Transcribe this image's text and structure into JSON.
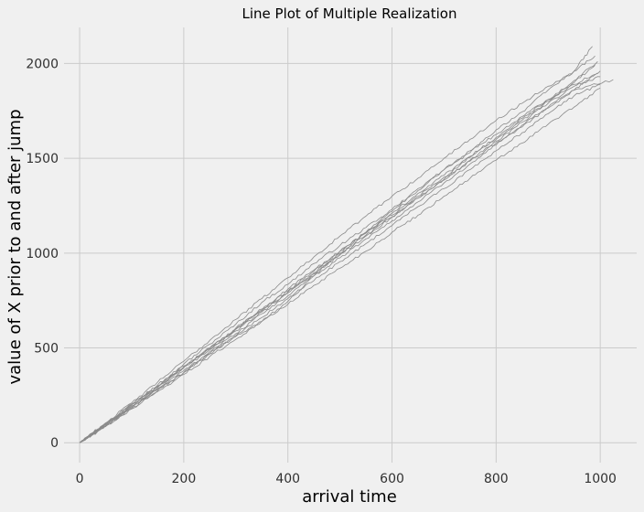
{
  "chart_data": {
    "type": "line",
    "title": "Line Plot of Multiple Realization",
    "xlabel": "arrival time",
    "ylabel": "value of X prior to and after jump",
    "xlim": [
      -30,
      1070
    ],
    "ylim": [
      -105,
      2190
    ],
    "x_ticks": [
      0,
      200,
      400,
      600,
      800,
      1000
    ],
    "y_ticks": [
      0,
      500,
      1000,
      1500,
      2000
    ],
    "grid": true,
    "legend": "none",
    "line_color": "#8a8a8a",
    "background": "#f0f0f0",
    "grid_color": "#cbcbcb",
    "series": [
      {
        "points": [
          [
            0,
            0
          ],
          [
            50,
            95
          ],
          [
            100,
            205
          ],
          [
            150,
            300
          ],
          [
            200,
            415
          ],
          [
            250,
            520
          ],
          [
            300,
            625
          ],
          [
            350,
            740
          ],
          [
            400,
            835
          ],
          [
            450,
            945
          ],
          [
            500,
            1040
          ],
          [
            550,
            1135
          ],
          [
            600,
            1220
          ],
          [
            650,
            1330
          ],
          [
            700,
            1440
          ],
          [
            750,
            1530
          ],
          [
            800,
            1650
          ],
          [
            850,
            1745
          ],
          [
            900,
            1860
          ],
          [
            950,
            1960
          ],
          [
            985,
            2090
          ]
        ]
      },
      {
        "points": [
          [
            0,
            0
          ],
          [
            50,
            90
          ],
          [
            100,
            190
          ],
          [
            150,
            280
          ],
          [
            200,
            370
          ],
          [
            250,
            470
          ],
          [
            300,
            560
          ],
          [
            350,
            640
          ],
          [
            400,
            745
          ],
          [
            450,
            880
          ],
          [
            500,
            1000
          ],
          [
            550,
            1110
          ],
          [
            600,
            1230
          ],
          [
            650,
            1340
          ],
          [
            700,
            1440
          ],
          [
            750,
            1540
          ],
          [
            800,
            1625
          ],
          [
            850,
            1720
          ],
          [
            900,
            1810
          ],
          [
            950,
            1890
          ],
          [
            1000,
            1960
          ]
        ]
      },
      {
        "points": [
          [
            0,
            0
          ],
          [
            50,
            100
          ],
          [
            100,
            200
          ],
          [
            150,
            305
          ],
          [
            200,
            405
          ],
          [
            250,
            500
          ],
          [
            300,
            600
          ],
          [
            350,
            705
          ],
          [
            400,
            800
          ],
          [
            450,
            905
          ],
          [
            500,
            1010
          ],
          [
            550,
            1105
          ],
          [
            600,
            1200
          ],
          [
            650,
            1300
          ],
          [
            700,
            1400
          ],
          [
            750,
            1505
          ],
          [
            800,
            1600
          ],
          [
            850,
            1700
          ],
          [
            900,
            1800
          ],
          [
            950,
            1900
          ],
          [
            990,
            1990
          ]
        ]
      },
      {
        "points": [
          [
            0,
            0
          ],
          [
            50,
            85
          ],
          [
            100,
            180
          ],
          [
            150,
            270
          ],
          [
            200,
            360
          ],
          [
            250,
            455
          ],
          [
            300,
            545
          ],
          [
            350,
            640
          ],
          [
            400,
            730
          ],
          [
            450,
            830
          ],
          [
            500,
            920
          ],
          [
            550,
            1010
          ],
          [
            600,
            1110
          ],
          [
            650,
            1200
          ],
          [
            700,
            1300
          ],
          [
            750,
            1395
          ],
          [
            800,
            1490
          ],
          [
            850,
            1580
          ],
          [
            900,
            1680
          ],
          [
            950,
            1770
          ],
          [
            1000,
            1870
          ]
        ]
      },
      {
        "points": [
          [
            0,
            0
          ],
          [
            50,
            105
          ],
          [
            100,
            210
          ],
          [
            150,
            320
          ],
          [
            200,
            430
          ],
          [
            250,
            540
          ],
          [
            300,
            650
          ],
          [
            350,
            760
          ],
          [
            400,
            870
          ],
          [
            450,
            980
          ],
          [
            500,
            1090
          ],
          [
            550,
            1195
          ],
          [
            600,
            1300
          ],
          [
            650,
            1395
          ],
          [
            700,
            1500
          ],
          [
            750,
            1600
          ],
          [
            800,
            1700
          ],
          [
            850,
            1790
          ],
          [
            900,
            1880
          ],
          [
            950,
            1960
          ],
          [
            990,
            2040
          ]
        ]
      },
      {
        "points": [
          [
            0,
            0
          ],
          [
            50,
            90
          ],
          [
            100,
            185
          ],
          [
            150,
            285
          ],
          [
            200,
            380
          ],
          [
            250,
            480
          ],
          [
            300,
            575
          ],
          [
            350,
            680
          ],
          [
            400,
            775
          ],
          [
            450,
            880
          ],
          [
            500,
            975
          ],
          [
            550,
            1075
          ],
          [
            600,
            1170
          ],
          [
            650,
            1270
          ],
          [
            700,
            1370
          ],
          [
            750,
            1470
          ],
          [
            800,
            1570
          ],
          [
            850,
            1665
          ],
          [
            900,
            1765
          ],
          [
            950,
            1860
          ],
          [
            995,
            1950
          ]
        ]
      },
      {
        "points": [
          [
            0,
            0
          ],
          [
            50,
            95
          ],
          [
            100,
            195
          ],
          [
            150,
            290
          ],
          [
            200,
            395
          ],
          [
            250,
            490
          ],
          [
            300,
            590
          ],
          [
            350,
            690
          ],
          [
            400,
            790
          ],
          [
            450,
            890
          ],
          [
            500,
            990
          ],
          [
            550,
            1090
          ],
          [
            600,
            1190
          ],
          [
            650,
            1290
          ],
          [
            700,
            1390
          ],
          [
            750,
            1490
          ],
          [
            800,
            1590
          ],
          [
            850,
            1690
          ],
          [
            900,
            1790
          ],
          [
            950,
            1880
          ],
          [
            1000,
            1930
          ]
        ]
      },
      {
        "points": [
          [
            0,
            0
          ],
          [
            50,
            100
          ],
          [
            100,
            190
          ],
          [
            150,
            295
          ],
          [
            200,
            400
          ],
          [
            250,
            500
          ],
          [
            300,
            605
          ],
          [
            350,
            700
          ],
          [
            400,
            810
          ],
          [
            450,
            910
          ],
          [
            500,
            1010
          ],
          [
            550,
            1110
          ],
          [
            600,
            1210
          ],
          [
            650,
            1315
          ],
          [
            700,
            1410
          ],
          [
            750,
            1510
          ],
          [
            800,
            1610
          ],
          [
            850,
            1710
          ],
          [
            900,
            1810
          ],
          [
            950,
            1910
          ],
          [
            995,
            2010
          ]
        ]
      },
      {
        "points": [
          [
            0,
            0
          ],
          [
            50,
            88
          ],
          [
            100,
            178
          ],
          [
            150,
            275
          ],
          [
            200,
            370
          ],
          [
            250,
            468
          ],
          [
            300,
            565
          ],
          [
            350,
            660
          ],
          [
            400,
            760
          ],
          [
            450,
            855
          ],
          [
            500,
            955
          ],
          [
            550,
            1050
          ],
          [
            600,
            1145
          ],
          [
            650,
            1245
          ],
          [
            700,
            1340
          ],
          [
            750,
            1440
          ],
          [
            800,
            1540
          ],
          [
            850,
            1635
          ],
          [
            900,
            1735
          ],
          [
            950,
            1830
          ],
          [
            1000,
            1890
          ]
        ]
      },
      {
        "points": [
          [
            0,
            0
          ],
          [
            50,
            98
          ],
          [
            100,
            200
          ],
          [
            150,
            298
          ],
          [
            200,
            398
          ],
          [
            250,
            495
          ],
          [
            300,
            598
          ],
          [
            350,
            695
          ],
          [
            400,
            795
          ],
          [
            450,
            895
          ],
          [
            500,
            995
          ],
          [
            550,
            1095
          ],
          [
            600,
            1190
          ],
          [
            650,
            1290
          ],
          [
            700,
            1385
          ],
          [
            750,
            1485
          ],
          [
            800,
            1580
          ],
          [
            850,
            1675
          ],
          [
            900,
            1770
          ],
          [
            950,
            1860
          ],
          [
            1025,
            1915
          ]
        ]
      }
    ]
  }
}
